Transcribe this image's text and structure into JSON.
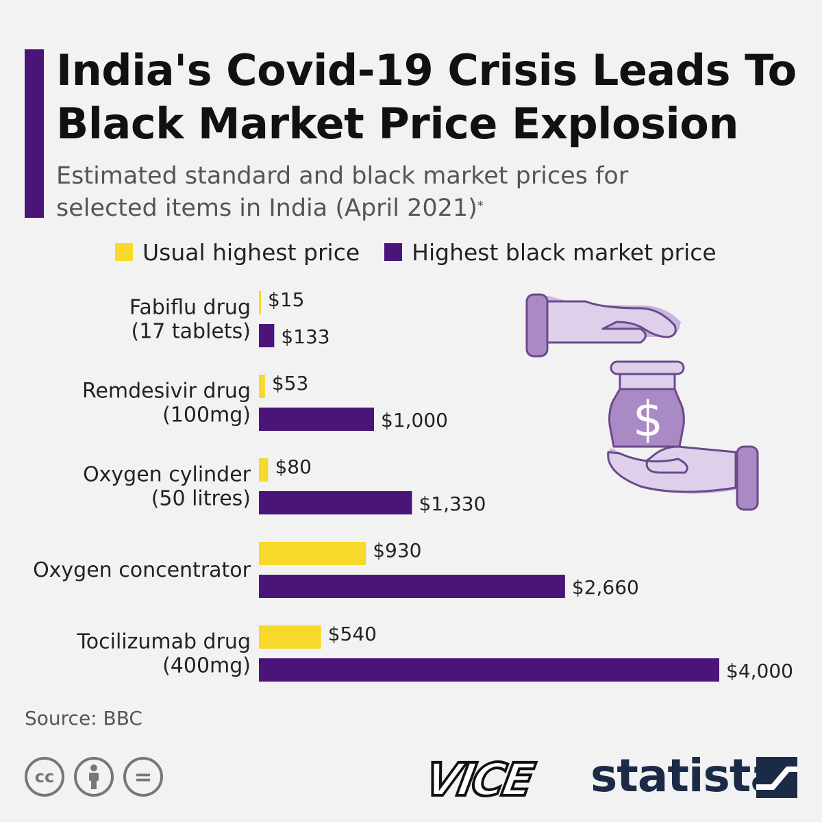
{
  "title": "India's Covid-19 Crisis Leads To Black Market Price Explosion",
  "subtitle": "Estimated standard and black market prices for selected items in India (April 2021)",
  "subtitle_footnote_mark": "*",
  "legend": {
    "usual": "Usual highest price",
    "black": "Highest black market price"
  },
  "colors": {
    "usual": "#f6d92b",
    "black": "#4b1479",
    "accent_bar": "#4b1479"
  },
  "chart_data": {
    "type": "bar",
    "orientation": "horizontal",
    "categories": [
      [
        "Fabiflu drug",
        "(17 tablets)"
      ],
      [
        "Remdesivir drug",
        "(100mg)"
      ],
      [
        "Oxygen cylinder",
        "(50 litres)"
      ],
      [
        "Oxygen concentrator"
      ],
      [
        "Tocilizumab drug",
        "(400mg)"
      ]
    ],
    "series": [
      {
        "name": "Usual highest price",
        "values": [
          15,
          53,
          80,
          930,
          540
        ],
        "labels": [
          "$15",
          "$53",
          "$80",
          "$930",
          "$540"
        ]
      },
      {
        "name": "Highest black market price",
        "values": [
          133,
          1000,
          1330,
          2660,
          4000
        ],
        "labels": [
          "$133",
          "$1,000",
          "$1,330",
          "$2,660",
          "$4,000"
        ]
      }
    ],
    "xlim": [
      0,
      4000
    ],
    "grid": false,
    "legend_position": "top"
  },
  "source": "Source: BBC",
  "cc_icons": [
    "creative-commons-icon",
    "attribution-icon",
    "no-derivatives-icon"
  ],
  "cc_glyphs": [
    "cc",
    "",
    "="
  ],
  "logos": {
    "vice": "VICE",
    "statista": "statista"
  }
}
